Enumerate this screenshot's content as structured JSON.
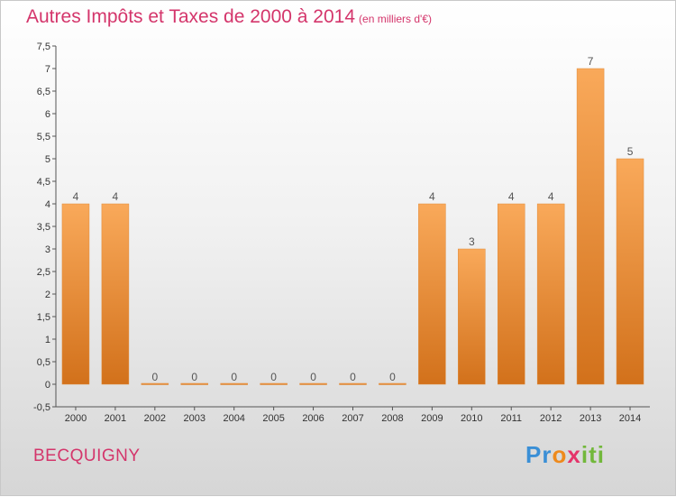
{
  "title": "Autres Impôts et Taxes de 2000 à 2014",
  "unit_note": "(en milliers d'€)",
  "commune": "BECQUIGNY",
  "logo": {
    "letters": [
      {
        "ch": "P",
        "color": "#3a8fd6"
      },
      {
        "ch": "r",
        "color": "#3a8fd6"
      },
      {
        "ch": "o",
        "color": "#ee8a1c"
      },
      {
        "ch": "x",
        "color": "#e5336a"
      },
      {
        "ch": "i",
        "color": "#72b83b"
      },
      {
        "ch": "t",
        "color": "#72b83b"
      },
      {
        "ch": "i",
        "color": "#72b83b"
      }
    ]
  },
  "colors": {
    "title": "#d4356b",
    "bar_light": "#f9a95a",
    "bar_dark": "#d2711b"
  },
  "chart_data": {
    "type": "bar",
    "categories": [
      "2000",
      "2001",
      "2002",
      "2003",
      "2004",
      "2005",
      "2006",
      "2007",
      "2008",
      "2009",
      "2010",
      "2011",
      "2012",
      "2013",
      "2014"
    ],
    "values": [
      4,
      4,
      0,
      0,
      0,
      0,
      0,
      0,
      0,
      4,
      3,
      4,
      4,
      7,
      5
    ],
    "data_labels": [
      "4",
      "4",
      "0",
      "0",
      "0",
      "0",
      "0",
      "0",
      "0",
      "4",
      "3",
      "4",
      "4",
      "7",
      "5"
    ],
    "ylim": [
      -0.5,
      7.5
    ],
    "yticks": [
      "-0,5",
      "0",
      "0,5",
      "1",
      "1,5",
      "2",
      "2,5",
      "3",
      "3,5",
      "4",
      "4,5",
      "5",
      "5,5",
      "6",
      "6,5",
      "7",
      "7,5"
    ],
    "ytick_values": [
      -0.5,
      0,
      0.5,
      1,
      1.5,
      2,
      2.5,
      3,
      3.5,
      4,
      4.5,
      5,
      5.5,
      6,
      6.5,
      7,
      7.5
    ],
    "grid": false,
    "xlabel": "",
    "ylabel": ""
  }
}
